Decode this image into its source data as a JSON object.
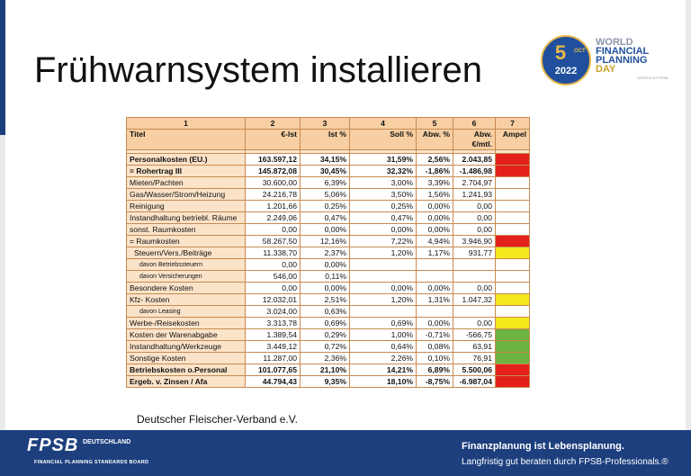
{
  "header": {
    "title": "Frühwarnsystem installieren",
    "logo": {
      "day": "5",
      "month": "OCT",
      "year": "2022",
      "lines": [
        "WORLD",
        "FINANCIAL",
        "PLANNING",
        "DAY"
      ],
      "hosted": "HOSTED BY FPSB"
    }
  },
  "table": {
    "column_numbers": [
      1,
      2,
      3,
      4,
      5,
      6,
      7
    ],
    "columns": [
      "Titel",
      "€-Ist",
      "Ist %",
      "Soll %",
      "Abw. %",
      "Abw. €/mtl.",
      "Ampel"
    ],
    "rows": [
      {
        "cells": [
          "Personalkosten (EU.)",
          "163.597,12",
          "34,15%",
          "31,59%",
          "2,56%",
          "2.043,85"
        ],
        "bold": true,
        "ampel": "#e3201b"
      },
      {
        "cells": [
          "= Rohertrag III",
          "145.872,08",
          "30,45%",
          "32,32%",
          "-1,86%",
          "-1.486,98"
        ],
        "bold": true,
        "ampel": "#e3201b"
      },
      {
        "cells": [
          "Mieten/Pachten",
          "30.600,00",
          "6,39%",
          "3,00%",
          "3,39%",
          "2.704,97"
        ]
      },
      {
        "cells": [
          "Gas/Wasser/Strom/Heizung",
          "24.216,78",
          "5,06%",
          "3,50%",
          "1,56%",
          "1.241,93"
        ]
      },
      {
        "cells": [
          "Reinigung",
          "1.201,66",
          "0,25%",
          "0,25%",
          "0,00%",
          "0,00"
        ]
      },
      {
        "cells": [
          "Instandhaltung betriebl. Räume",
          "2.249,06",
          "0,47%",
          "0,47%",
          "0,00%",
          "0,00"
        ]
      },
      {
        "cells": [
          "sonst. Raumkosten",
          "0,00",
          "0,00%",
          "0,00%",
          "0,00%",
          "0,00"
        ]
      },
      {
        "cells": [
          "= Raumkosten",
          "58.267,50",
          "12,16%",
          "7,22%",
          "4,94%",
          "3.946,90"
        ],
        "ampel": "#e3201b"
      },
      {
        "cells": [
          "Steuern/Vers./Beiträge",
          "11.338,70",
          "2,37%",
          "1,20%",
          "1,17%",
          "931,77"
        ],
        "level": 1,
        "ampel": "#f2e81c"
      },
      {
        "cells": [
          "davon Betriebssteuern",
          "0,00",
          "0,00%"
        ],
        "level": 2
      },
      {
        "cells": [
          "davon Versicherungen",
          "546,00",
          "0,11%"
        ],
        "level": 2
      },
      {
        "cells": [
          "Besondere Kosten",
          "0,00",
          "0,00%",
          "0,00%",
          "0,00%",
          "0,00"
        ]
      },
      {
        "cells": [
          "Kfz- Kosten",
          "12.032,01",
          "2,51%",
          "1,20%",
          "1,31%",
          "1.047,32"
        ],
        "ampel": "#f2e81c"
      },
      {
        "cells": [
          "davon Leasing",
          "3.024,00",
          "0,63%"
        ],
        "level": 2
      },
      {
        "cells": [
          "Werbe-/Reisekosten",
          "3.313,78",
          "0,69%",
          "0,69%",
          "0,00%",
          "0,00"
        ],
        "ampel": "#f2e81c"
      },
      {
        "cells": [
          "Kosten der Warenabgabe",
          "1.389,54",
          "0,29%",
          "1,00%",
          "-0,71%",
          "-566,75"
        ],
        "ampel": "#6cb33f"
      },
      {
        "cells": [
          "Instandhaltung/Werkzeuge",
          "3.449,12",
          "0,72%",
          "0,64%",
          "0,08%",
          "63,91"
        ],
        "ampel": "#6cb33f"
      },
      {
        "cells": [
          "Sonstige Kosten",
          "11.287,00",
          "2,36%",
          "2,26%",
          "0,10%",
          "76,91"
        ],
        "ampel": "#6cb33f"
      },
      {
        "cells": [
          "Betriebskosten o.Personal",
          "101.077,65",
          "21,10%",
          "14,21%",
          "6,89%",
          "5.500,06"
        ],
        "bold": true,
        "ampel": "#e3201b"
      },
      {
        "cells": [
          "Ergeb. v. Zinsen / Afa",
          "44.794,43",
          "9,35%",
          "18,10%",
          "-8,75%",
          "-6.987,04"
        ],
        "bold": true,
        "ampel": "#e3201b"
      }
    ]
  },
  "caption": "Deutscher Fleischer-Verband e.V.",
  "footer": {
    "brand": "FPSB",
    "brand_sub": "DEUTSCHLAND",
    "board": "FINANCIAL PLANNING STANDARDS BOARD",
    "slogan": "Finanzplanung ist Lebensplanung.",
    "tagline": "Langfristig gut beraten durch FPSB-Professionals.®"
  }
}
